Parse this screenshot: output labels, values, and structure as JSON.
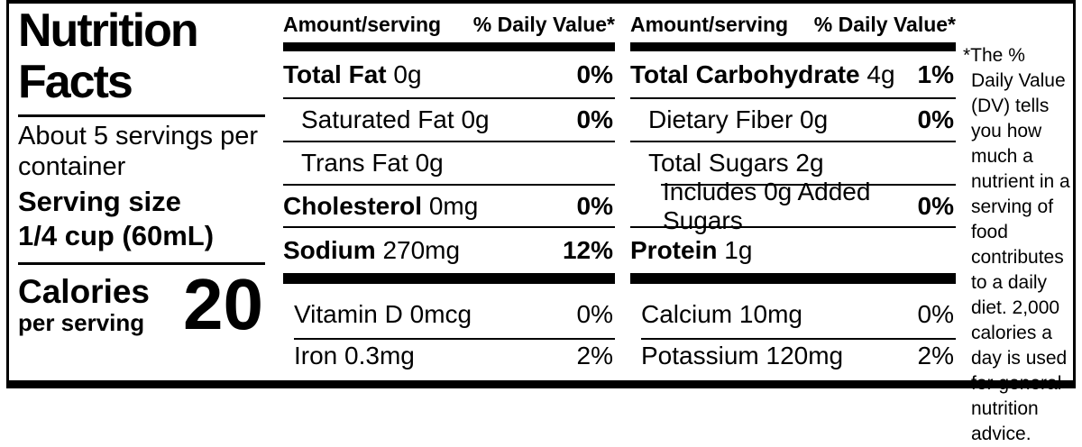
{
  "colors": {
    "ink": "#000000",
    "background": "#ffffff"
  },
  "left_panel": {
    "title": "Nutrition Facts",
    "servings_per_container": "About 5 servings per container",
    "serving_size_label": "Serving size",
    "serving_size_value": "1/4 cup (60mL)",
    "calories_label": "Calories",
    "calories_sublabel": "per serving",
    "calories_value": "20"
  },
  "col1": {
    "amount_header": "Amount/serving",
    "dv_header": "% Daily Value*",
    "total_fat": {
      "label": "Total Fat",
      "amount": "0g",
      "dv": "0%"
    },
    "saturated_fat": {
      "label": "Saturated Fat",
      "amount": "0g",
      "dv": "0%"
    },
    "trans_fat": {
      "label": "Trans Fat",
      "amount": "0g",
      "dv": ""
    },
    "cholesterol": {
      "label": "Cholesterol",
      "amount": "0mg",
      "dv": "0%"
    },
    "sodium": {
      "label": "Sodium",
      "amount": "270mg",
      "dv": "12%"
    },
    "vitamin_d": {
      "label": "Vitamin D",
      "amount": "0mcg",
      "dv": "0%"
    },
    "iron": {
      "label": "Iron",
      "amount": "0.3mg",
      "dv": "2%"
    }
  },
  "col2": {
    "amount_header": "Amount/serving",
    "dv_header": "% Daily Value*",
    "total_carbohydrate": {
      "label": "Total Carbohydrate",
      "amount": "4g",
      "dv": "1%"
    },
    "dietary_fiber": {
      "label": "Dietary Fiber",
      "amount": "0g",
      "dv": "0%"
    },
    "total_sugars": {
      "label": "Total Sugars",
      "amount": "2g",
      "dv": ""
    },
    "added_sugars": {
      "label": "Includes 0g Added Sugars",
      "amount": "",
      "dv": "0%"
    },
    "protein": {
      "label": "Protein",
      "amount": "1g",
      "dv": ""
    },
    "calcium": {
      "label": "Calcium",
      "amount": "10mg",
      "dv": "0%"
    },
    "potassium": {
      "label": "Potassium",
      "amount": "120mg",
      "dv": "2%"
    }
  },
  "footnote": "*The % Daily Value (DV) tells you how much a nutrient in a serving of food contributes to a daily diet. 2,000 calories a day is used for general nutrition advice."
}
